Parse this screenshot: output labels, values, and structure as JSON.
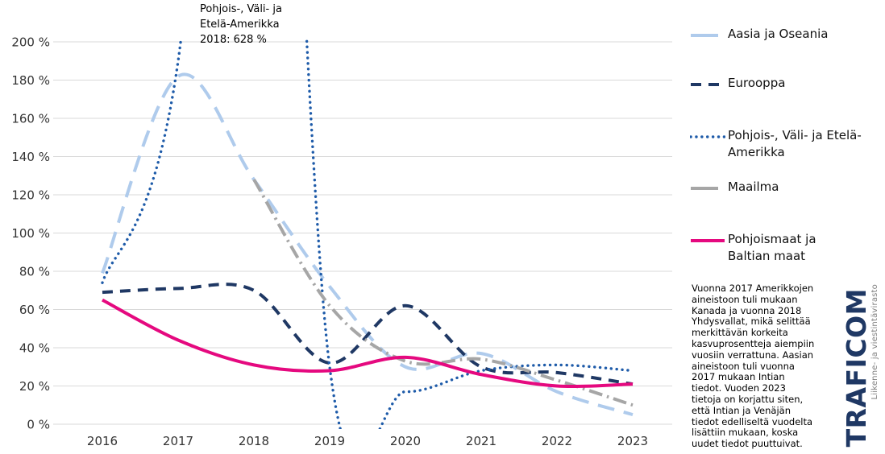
{
  "annotation": {
    "text": "Pohjois-, Väli- ja\nEtelä-Amerikka\n2018: 628 %"
  },
  "chart_data": {
    "type": "line",
    "title": "",
    "xlabel": "",
    "ylabel": "",
    "categories": [
      "2016",
      "2017",
      "2018",
      "2019",
      "2020",
      "2021",
      "2022",
      "2023"
    ],
    "series": [
      {
        "name": "Aasia ja Oseania",
        "color": "#AFCBEC",
        "style": "long-dash",
        "dash": "21 12",
        "legend_dash": "34 10",
        "width": 4,
        "cap": "butt",
        "values": [
          79,
          182,
          128,
          72,
          30,
          37,
          17,
          5
        ]
      },
      {
        "name": "Eurooppa",
        "color": "#1F3864",
        "style": "dash",
        "dash": "13 9",
        "legend_dash": "13 9",
        "width": 4,
        "cap": "butt",
        "values": [
          69,
          71,
          70,
          32,
          62,
          30,
          27,
          21
        ]
      },
      {
        "name": "Pohjois-, Väli- ja Etelä-Amerikka",
        "color": "#1E5BA9",
        "style": "dot",
        "dash": "0.1 6.8",
        "legend_dash": "0.1 6.8",
        "width": 3.4,
        "cap": "round",
        "values": [
          74,
          190,
          628,
          30,
          17,
          28,
          31,
          28
        ]
      },
      {
        "name": "Maailma",
        "color": "#A6A6A6",
        "style": "dash-dot",
        "dash": "17 6 2.5 6",
        "legend_dash": "34 10",
        "width": 4,
        "cap": "butt",
        "values": [
          null,
          null,
          128,
          62,
          33,
          34,
          23,
          10
        ]
      },
      {
        "name": "Pohjoismaat ja Baltian maat",
        "color": "#E5097F",
        "style": "solid",
        "dash": "",
        "legend_dash": "",
        "width": 4,
        "cap": "butt",
        "values": [
          65,
          44,
          31,
          28,
          35,
          26,
          20,
          21
        ]
      }
    ],
    "ylim": [
      0,
      200
    ],
    "y_tick_step": 20,
    "y_tick_labels": [
      "0 %",
      "20 %",
      "40 %",
      "60 %",
      "80 %",
      "100 %",
      "120 %",
      "140 %",
      "160 %",
      "180 %",
      "200 %"
    ],
    "grid": true,
    "legend_position": "right",
    "clipped_note": "Pohjois-, Väli- ja Etelä-Amerikka 2018 value 628 % exceeds the 200 % axis maximum and is clipped; called out in the annotation"
  },
  "legend": {
    "items": [
      {
        "label": "Aasia ja Oseania"
      },
      {
        "label": "Eurooppa"
      },
      {
        "label": "Pohjois-, Väli- ja Etelä-\nAmerikka"
      },
      {
        "label": "Maailma"
      },
      {
        "label": "Pohjoismaat ja\nBaltian maat"
      }
    ]
  },
  "footnote": {
    "text": "Vuonna 2017 Amerikkojen\naineistoon tuli mukaan\nKanada ja vuonna 2018\nYhdysvallat, mikä selittää\nmerkittävän korkeita\nkasvuprosentteja aiempiin\nvuosiin verrattuna. Aasian\naineistoon tuli vuonna\n2017 mukaan Intian\ntiedot. Vuoden 2023\ntietoja on korjattu siten,\nettä Intian ja Venäjän\ntiedot edelliseltä vuodelta\nlisättiin mukaan, koska\nuudet tiedot puuttuivat."
  },
  "logo": {
    "brand": "TRAFICOM",
    "tagline": "Liikenne- ja viestintävirasto"
  },
  "colors": {
    "gridline": "#D9D9D9",
    "axis_text": "#333333",
    "logo_navy": "#1F3864",
    "logo_gray": "#7F7F7F",
    "accent_pink": "#E5097F"
  }
}
